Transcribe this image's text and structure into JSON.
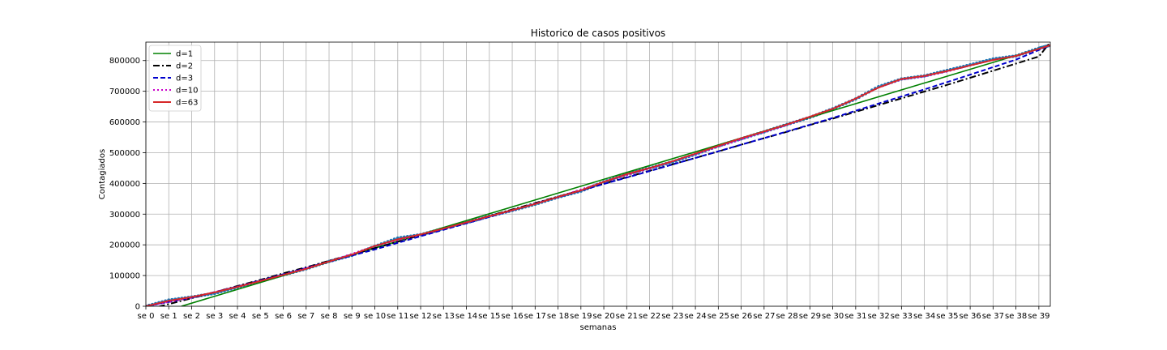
{
  "chart_data": {
    "type": "line",
    "title": "Historico de casos positivos",
    "xlabel": "semanas",
    "ylabel": "Contagiados",
    "xlim": [
      0,
      39.5
    ],
    "ylim": [
      0,
      860000
    ],
    "grid": true,
    "legend": "top-left",
    "x_ticks": [
      0,
      1,
      2,
      3,
      4,
      5,
      6,
      7,
      8,
      9,
      10,
      11,
      12,
      13,
      14,
      15,
      16,
      17,
      18,
      19,
      20,
      21,
      22,
      23,
      24,
      25,
      26,
      27,
      28,
      29,
      30,
      31,
      32,
      33,
      34,
      35,
      36,
      37,
      38,
      39
    ],
    "x_tick_labels": [
      "se 0",
      "se 1",
      "se 2",
      "se 3",
      "se 4",
      "se 5",
      "se 6",
      "se 7",
      "se 8",
      "se 9",
      "se 10",
      "se 11",
      "se 12",
      "se 13",
      "se 14",
      "se 15",
      "se 16",
      "se 17",
      "se 18",
      "se 19",
      "se 20",
      "se 21",
      "se 22",
      "se 23",
      "se 24",
      "se 25",
      "se 26",
      "se 27",
      "se 28",
      "se 29",
      "se 30",
      "se 31",
      "se 32",
      "se 33",
      "se 34",
      "se 35",
      "se 36",
      "se 37",
      "se 38",
      "se 39"
    ],
    "y_ticks": [
      0,
      100000,
      200000,
      300000,
      400000,
      500000,
      600000,
      700000,
      800000
    ],
    "y_tick_labels": [
      "0",
      "100000",
      "200000",
      "300000",
      "400000",
      "500000",
      "600000",
      "700000",
      "800000"
    ],
    "observed_color": "#1f77b4",
    "observed_weeks": [
      0,
      1,
      2,
      3,
      4,
      5,
      6,
      7,
      8,
      9,
      10,
      11,
      12,
      13,
      14,
      15,
      16,
      17,
      18,
      19,
      20,
      21,
      22,
      23,
      24,
      25,
      26,
      27,
      28,
      29,
      30,
      31,
      32,
      33,
      34,
      35,
      36,
      37,
      38,
      39,
      39.5
    ],
    "observed_values": [
      0,
      20000,
      30000,
      42000,
      62000,
      82000,
      102000,
      122000,
      146000,
      166000,
      195000,
      222000,
      233000,
      253000,
      272000,
      293000,
      312000,
      332000,
      355000,
      375000,
      405000,
      430000,
      450000,
      470000,
      495000,
      522000,
      545000,
      568000,
      592000,
      615000,
      643000,
      675000,
      715000,
      740000,
      750000,
      768000,
      786000,
      805000,
      815000,
      840000,
      850000
    ],
    "series": [
      {
        "name": "d=1",
        "color": "#008000",
        "dash": "",
        "width": 1.6,
        "x": [
          1.55,
          39.5
        ],
        "values": [
          0,
          850000
        ]
      },
      {
        "name": "d=2",
        "color": "#000000",
        "dash": "8,3,2,3",
        "width": 2,
        "x": [
          0,
          1,
          2,
          3,
          4,
          5,
          6,
          7,
          8,
          9,
          10,
          11,
          12,
          13,
          14,
          15,
          16,
          17,
          18,
          19,
          20,
          21,
          22,
          23,
          24,
          25,
          26,
          27,
          28,
          29,
          30,
          31,
          32,
          33,
          34,
          35,
          36,
          37,
          38,
          39,
          39.5
        ],
        "values": [
          -12000,
          7000,
          26000,
          46000,
          66000,
          86000,
          107000,
          127000,
          148000,
          168000,
          189000,
          210000,
          231000,
          252000,
          273000,
          294000,
          315000,
          336000,
          357000,
          378000,
          399000,
          420000,
          441000,
          462000,
          483000,
          504000,
          526000,
          547000,
          568000,
          590000,
          611000,
          633000,
          655000,
          677000,
          699000,
          721000,
          744000,
          767000,
          790000,
          813000,
          860000
        ]
      },
      {
        "name": "d=3",
        "color": "#0000cc",
        "dash": "6,3",
        "width": 2,
        "x": [
          0,
          2,
          4,
          6,
          8,
          10,
          12,
          14,
          16,
          18,
          20,
          22,
          24,
          26,
          28,
          30,
          32,
          34,
          36,
          38,
          39.5
        ],
        "values": [
          0,
          28000,
          64000,
          104000,
          145000,
          185000,
          228000,
          270000,
          312000,
          355000,
          398000,
          440000,
          483000,
          526000,
          569000,
          613000,
          660000,
          706000,
          754000,
          803000,
          850000
        ]
      },
      {
        "name": "d=10",
        "color": "#cc00cc",
        "dash": "2,3",
        "width": 2,
        "x": [
          0,
          2,
          4,
          6,
          8,
          10,
          11,
          12,
          14,
          16,
          18,
          20,
          22,
          24,
          26,
          28,
          30,
          31,
          32,
          33,
          34,
          35,
          36,
          37,
          38,
          39,
          39.5
        ],
        "values": [
          0,
          28000,
          64000,
          102000,
          146000,
          196000,
          215000,
          233000,
          273000,
          313000,
          356000,
          405000,
          448000,
          495000,
          543000,
          590000,
          643000,
          676000,
          712000,
          738000,
          748000,
          764000,
          784000,
          802000,
          815000,
          838000,
          850000
        ]
      },
      {
        "name": "d=63",
        "color": "#d62728",
        "dash": "",
        "width": 2,
        "x": [
          0,
          1,
          2,
          3,
          4,
          5,
          6,
          7,
          8,
          9,
          10,
          11,
          12,
          13,
          14,
          15,
          16,
          17,
          18,
          19,
          20,
          21,
          22,
          23,
          24,
          25,
          26,
          27,
          28,
          29,
          30,
          31,
          32,
          33,
          34,
          35,
          36,
          37,
          38,
          39,
          39.5
        ],
        "values": [
          0,
          18000,
          30000,
          45000,
          63000,
          82000,
          102000,
          122000,
          146000,
          168000,
          196000,
          218000,
          234000,
          253000,
          273000,
          293000,
          313000,
          333000,
          356000,
          377000,
          405000,
          430000,
          450000,
          472000,
          497000,
          522000,
          547000,
          569000,
          592000,
          617000,
          643000,
          676000,
          712000,
          740000,
          750000,
          766000,
          784000,
          802000,
          815000,
          838000,
          850000
        ]
      }
    ]
  }
}
